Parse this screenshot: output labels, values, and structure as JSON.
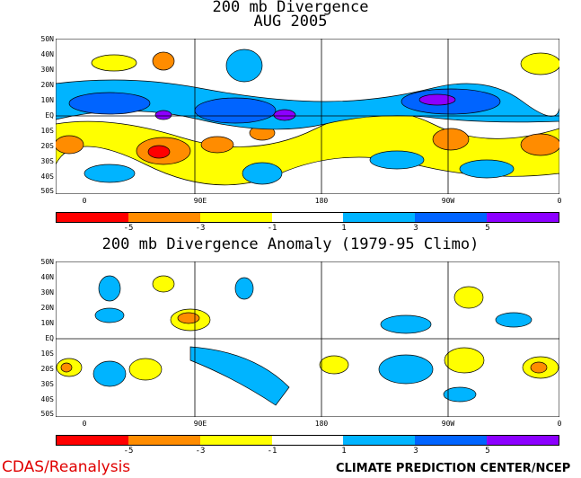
{
  "top_title_line1": "200 mb Divergence",
  "top_title_line2": "AUG 2005",
  "bottom_title": "200 mb Divergence Anomaly (1979-95 Climo)",
  "lat_labels": [
    "50N",
    "40N",
    "30N",
    "20N",
    "10N",
    "EQ",
    "10S",
    "20S",
    "30S",
    "40S",
    "50S"
  ],
  "lon_labels": [
    "0",
    "90E",
    "180",
    "90W",
    "0"
  ],
  "colorbar_labels": [
    "-5",
    "-3",
    "-1",
    "1",
    "3",
    "5"
  ],
  "colorbar_colors": [
    "#ff0000",
    "#ff8c00",
    "#ffff00",
    "#ffffff",
    "#00b4ff",
    "#0064ff",
    "#8c00ff"
  ],
  "footer_left": "CDAS/Reanalysis",
  "footer_right": "CLIMATE PREDICTION CENTER/NCEP"
}
